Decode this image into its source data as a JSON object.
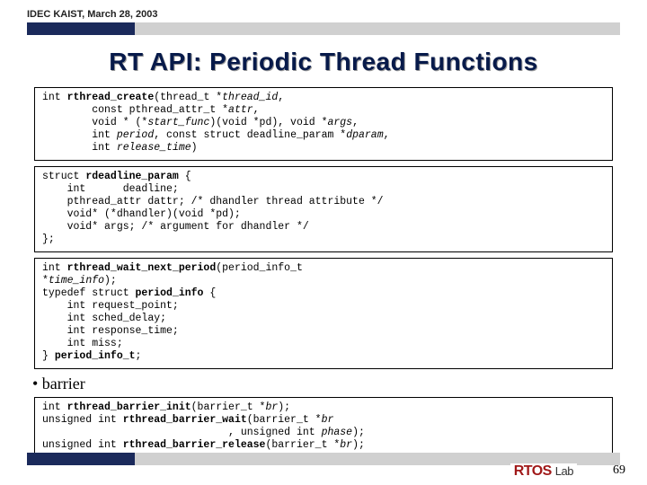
{
  "meta": {
    "header_label": "IDEC KAIST, March 28, 2003",
    "title": "RT API: Periodic Thread Functions",
    "page_number": "69",
    "logo_main": "RTOS",
    "logo_sub": "Lab"
  },
  "colors": {
    "navy": "#1b2a5b",
    "gray": "#d0d0d0",
    "title": "#071a4a",
    "logo_red": "#a01818"
  },
  "code1": {
    "fn": "rthread_create",
    "sig_open": "int ",
    "sig_after": "(thread_t *",
    "p_thread_id": "thread_id",
    "l2a": "        const pthread_attr_t *",
    "p_attr": "attr",
    "l3a": "        void * (*",
    "p_start_func": "start_func",
    "l3b": ")(void *pd), void *",
    "p_args": "args",
    "l4a": "        int ",
    "p_period": "period",
    "l4b": ", const struct deadline_param *",
    "p_dparam": "dparam",
    "l5a": "        int ",
    "p_release_time": "release_time",
    "close": ")"
  },
  "code2": {
    "l1": "struct ",
    "name": "rdeadline_param",
    "l1b": " {",
    "l2": "    int      deadline;",
    "l3": "    pthread_attr dattr; /* dhandler thread attribute */",
    "l4": "    void* (*dhandler)(void *pd);",
    "l5": "    void* args; /* argument for dhandler */",
    "l6": "};"
  },
  "code3": {
    "l1a": "int ",
    "fn1": "rthread_wait_next_period",
    "l1b": "(period_info_t",
    "l2": "*",
    "p_time_info": "time_info",
    "l2b": ");",
    "l3a": "typedef struct ",
    "name2": "period_info",
    "l3b": " {",
    "l4": "    int request_point;",
    "l5": "    int sched_delay;",
    "l6": "    int response_time;",
    "l7": "    int miss;",
    "l8": "} ",
    "name3": "period_info_t",
    "l8b": ";"
  },
  "bullet": "• barrier",
  "code4": {
    "l1a": "int ",
    "fn1": "rthread_barrier_init",
    "l1b": "(barrier_t *",
    "p_br1": "br",
    "l1c": ");",
    "l2a": "unsigned int ",
    "fn2": "rthread_barrier_wait",
    "l2b": "(barrier_t *",
    "p_br2": "br",
    "l3a": "                              , unsigned int ",
    "p_phase": "phase",
    "l3b": ");",
    "l4a": "unsigned int ",
    "fn3": "rthread_barrier_release",
    "l4b": "(barrier_t *",
    "p_br3": "br",
    "l4c": ");"
  }
}
